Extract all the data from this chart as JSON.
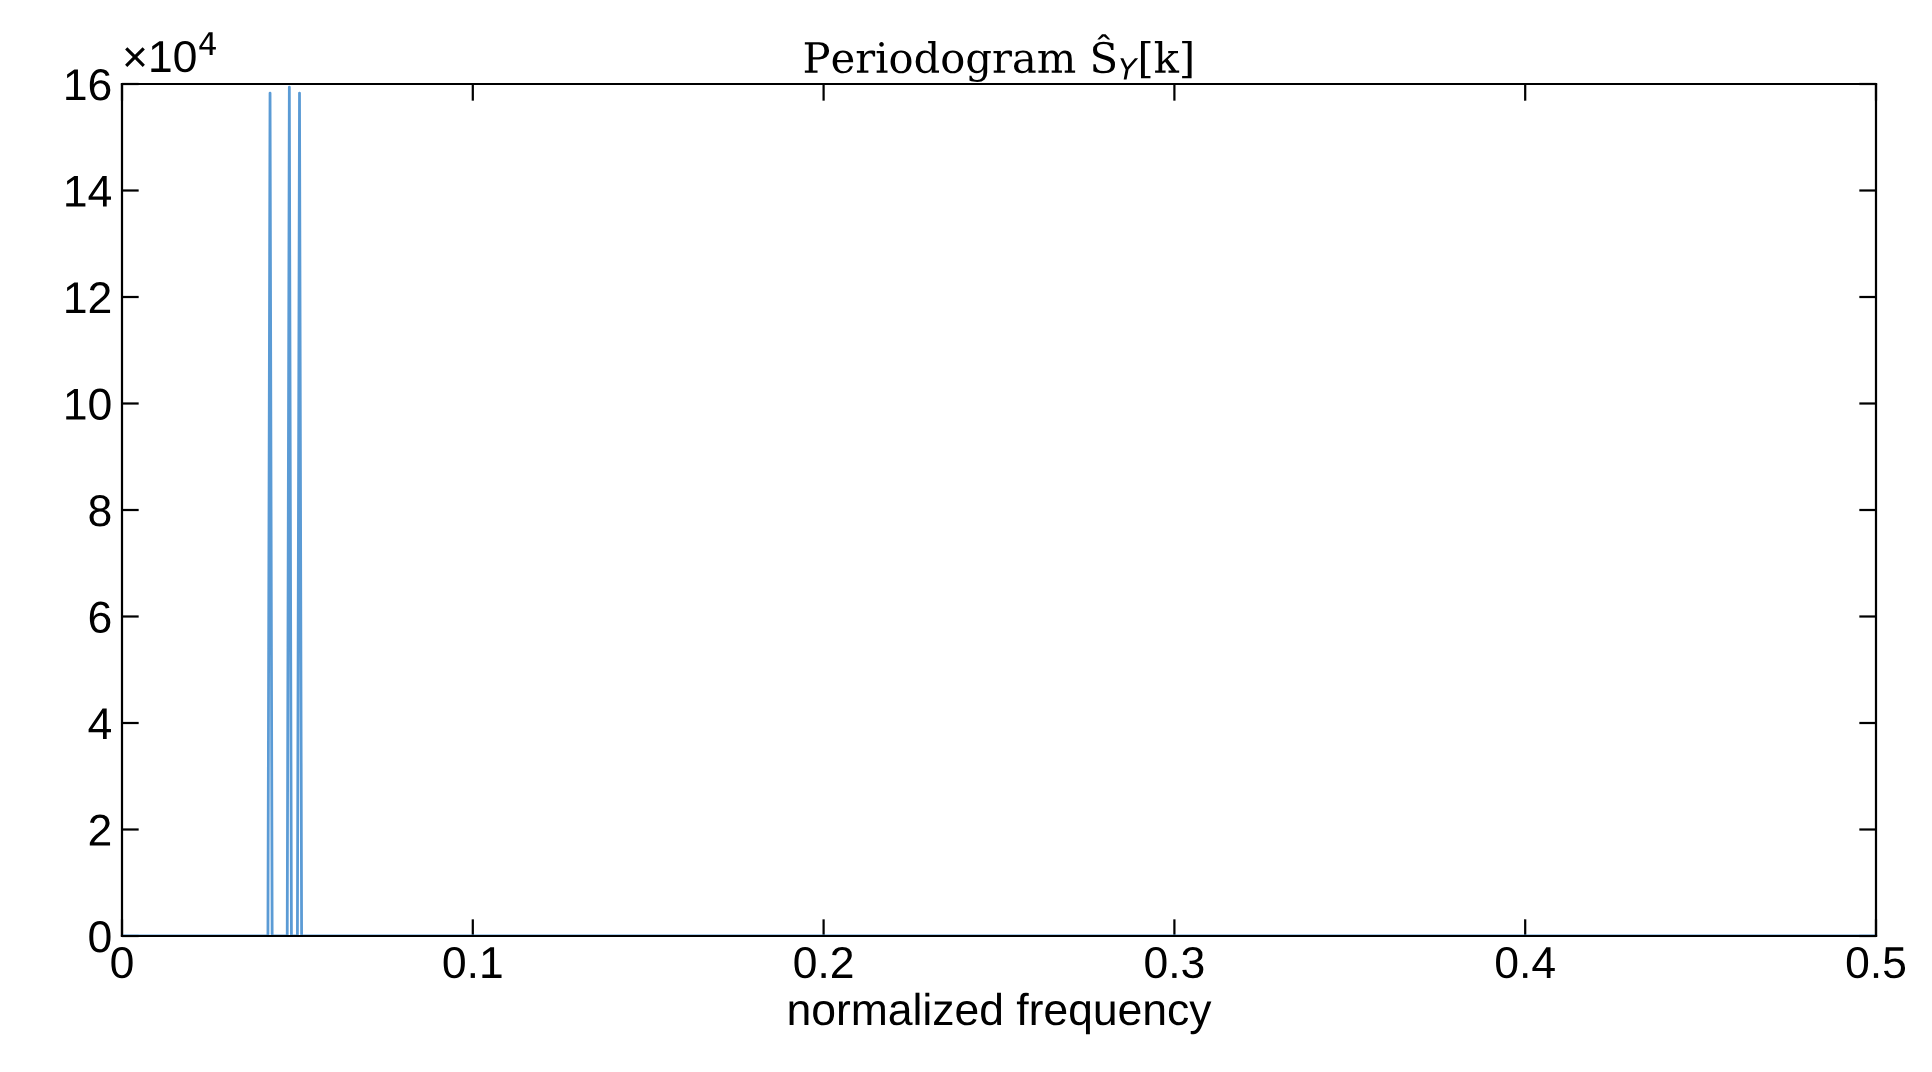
{
  "chart_data": {
    "type": "line",
    "title": "Periodogram Ŝ$_{Y}$[k]",
    "xlabel": "normalized frequency",
    "annotations": [
      "×10$^{4}$"
    ],
    "x": [
      0,
      0.0416,
      0.0422,
      0.0428,
      0.0471,
      0.0477,
      0.0483,
      0.05,
      0.0506,
      0.0512,
      0.5
    ],
    "series": [
      {
        "color": "#5b9bd5",
        "values": [
          0,
          0,
          15.83,
          0,
          0,
          15.94,
          0,
          0,
          15.83,
          0,
          0
        ]
      }
    ],
    "xlim": [
      0,
      0.5
    ],
    "xticks": [
      0,
      0.1,
      0.2,
      0.3,
      0.4,
      0.5
    ],
    "ylim": [
      0,
      16
    ],
    "yticks": [
      0,
      2,
      4,
      6,
      8,
      10,
      12,
      14,
      16
    ],
    "grid": false,
    "legend": false,
    "marker": "none",
    "line_style": "solid"
  }
}
